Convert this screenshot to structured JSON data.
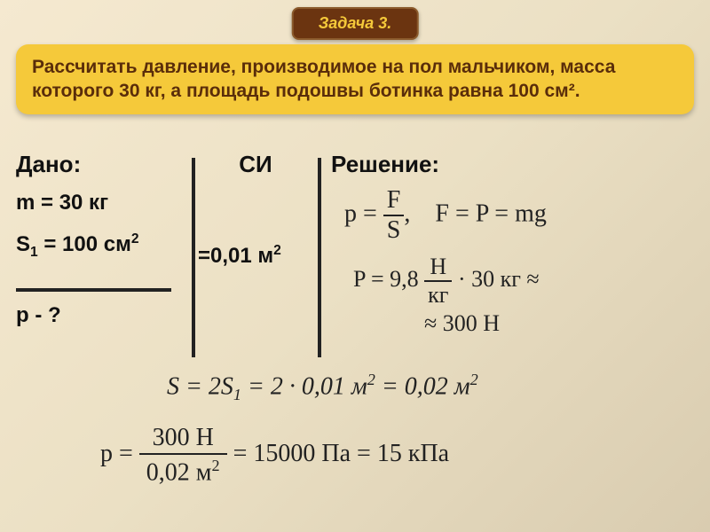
{
  "badge": {
    "label": "Задача 3."
  },
  "problem": {
    "text": "Рассчитать давление, производимое на пол мальчиком, масса которого 30 кг, а площадь подошвы ботинка равна 100 см²."
  },
  "given": {
    "title": "Дано:",
    "mass": "m = 30 кг",
    "area_html": "S<sub>1</sub> = 100 см<sup>2</sup>",
    "unknown": "p - ?"
  },
  "si": {
    "title": "СИ",
    "area_conv_html": "=0,01 м<sup>2</sup>"
  },
  "solution": {
    "title": "Решение:",
    "eq1": {
      "p_eq": "p =",
      "frac_num": "F",
      "frac_den": "S",
      "comma": ",",
      "f_eq": "F = P = mg"
    },
    "eq2": {
      "P_eq": "P = 9,8",
      "frac_num": "Н",
      "frac_den": "кг",
      "rest": "· 30 кг ≈",
      "approx": "≈ 300 Н"
    },
    "eq3_html": "S = 2S<sub>1</sub> = 2 · 0,01 м<sup>2</sup> = 0,02 м<sup>2</sup>",
    "eq4": {
      "p_eq": "p =",
      "frac_num": "300 Н",
      "frac_den_html": "0,02 м<sup>2</sup>",
      "result": "= 15000 Па = 15 кПа"
    }
  },
  "colors": {
    "badge_bg": "#6b3410",
    "badge_text": "#f5c93a",
    "problem_bg": "#f5c93a",
    "problem_text": "#5a2d0a",
    "page_bg_start": "#f5e9d0",
    "page_bg_end": "#d9ccb0",
    "text": "#111111",
    "line": "#222222"
  },
  "typography": {
    "badge_fontsize": 18,
    "problem_fontsize": 21,
    "label_fontsize": 26,
    "data_fontsize": 24,
    "equation_fontsize": 26
  }
}
